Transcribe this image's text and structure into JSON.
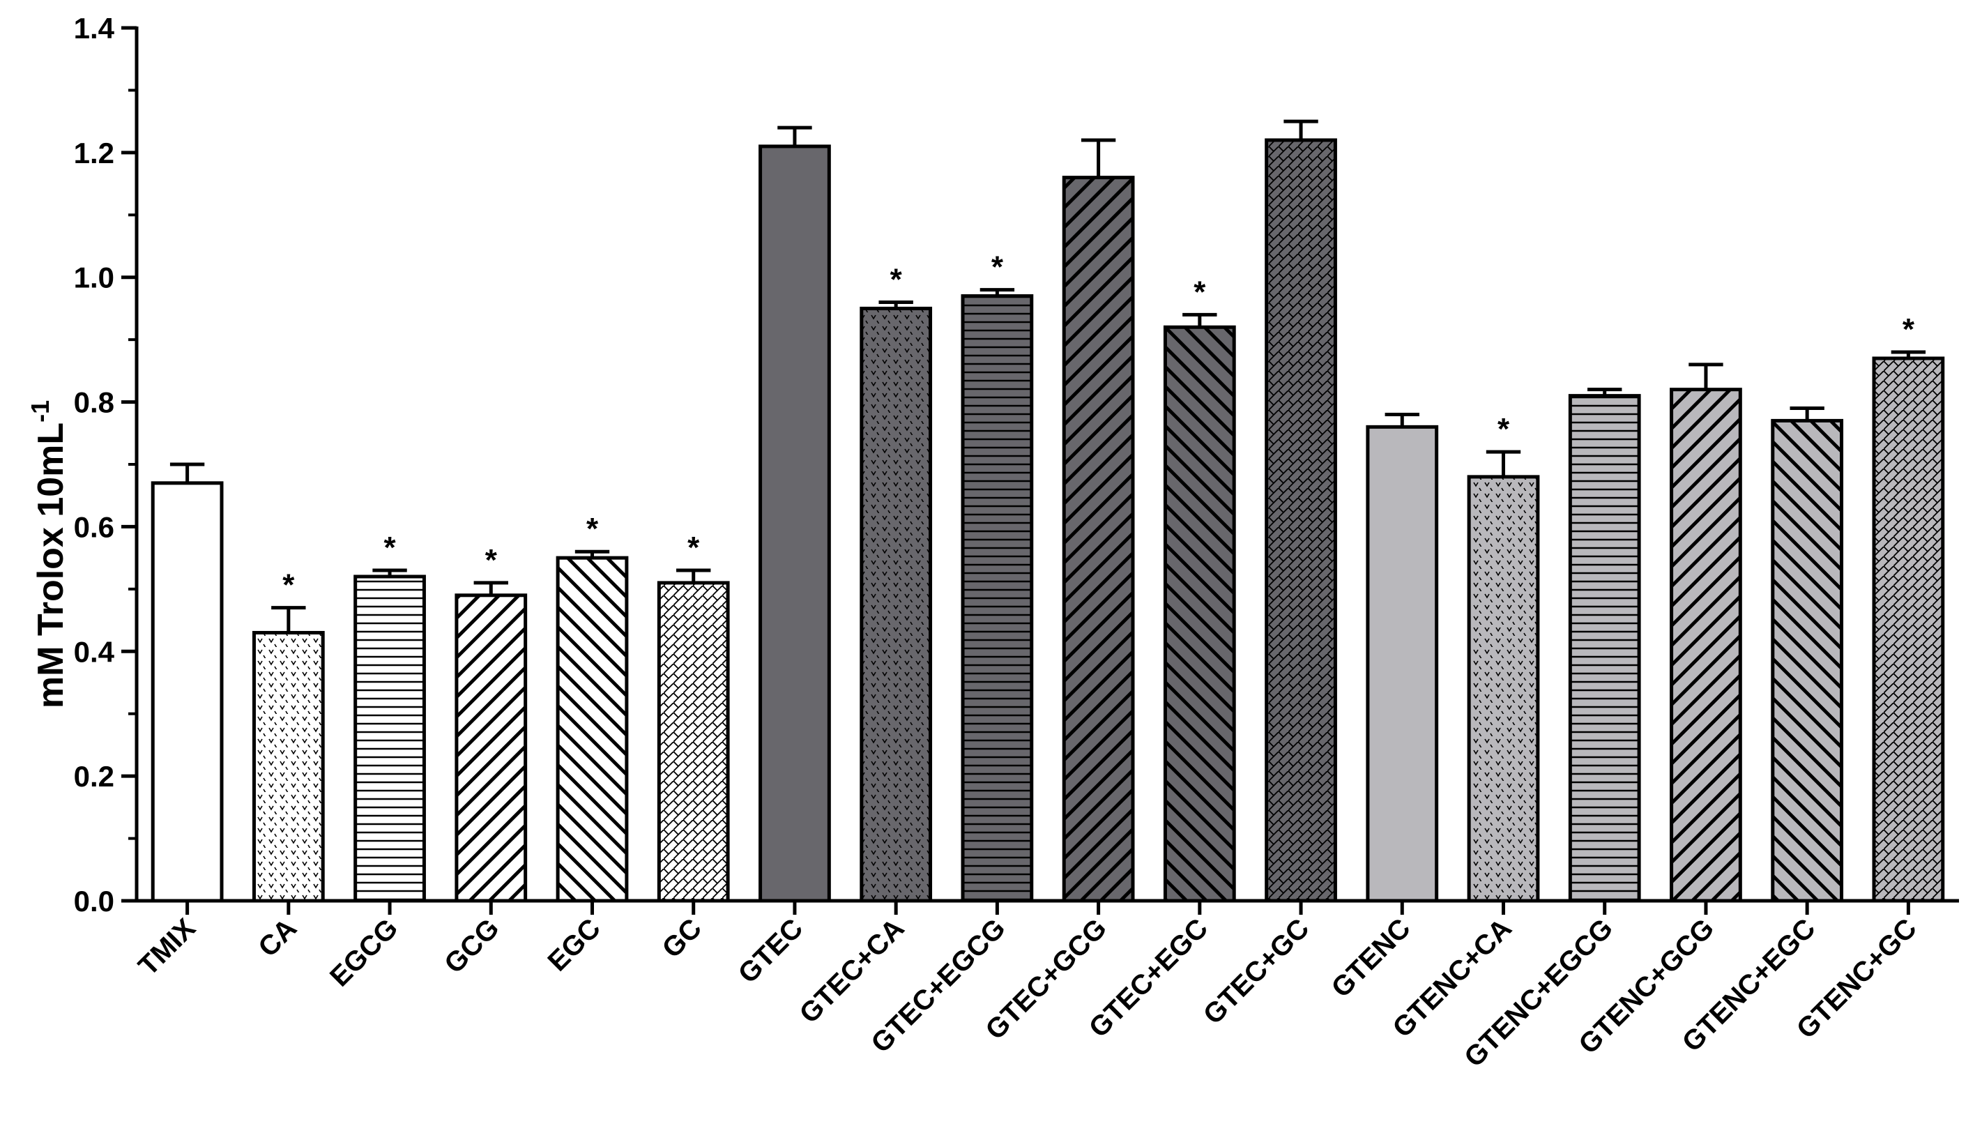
{
  "chart_data": {
    "type": "bar",
    "title": "",
    "xlabel": "",
    "ylabel": "mM Trolox 10mL",
    "ylabel_superscript": "-1",
    "ylim": [
      0,
      1.4
    ],
    "yticks": [
      "0.0",
      "0.2",
      "0.4",
      "0.6",
      "0.8",
      "1.0",
      "1.2",
      "1.4"
    ],
    "grid": false,
    "legend": "none",
    "categories": [
      "TMIX",
      "CA",
      "EGCG",
      "GCG",
      "EGC",
      "GC",
      "GTEC",
      "GTEC+CA",
      "GTEC+EGCG",
      "GTEC+GCG",
      "GTEC+EGC",
      "GTEC+GC",
      "GTENC",
      "GTENC+CA",
      "GTENC+EGCG",
      "GTENC+GCG",
      "GTENC+EGC",
      "GTENC+GC"
    ],
    "values": [
      0.67,
      0.43,
      0.52,
      0.49,
      0.55,
      0.51,
      1.21,
      0.95,
      0.97,
      1.16,
      0.92,
      1.22,
      0.76,
      0.68,
      0.81,
      0.82,
      0.77,
      0.87
    ],
    "errors": [
      0.03,
      0.04,
      0.01,
      0.02,
      0.01,
      0.02,
      0.03,
      0.01,
      0.01,
      0.06,
      0.02,
      0.03,
      0.02,
      0.04,
      0.01,
      0.04,
      0.02,
      0.01
    ],
    "significance": [
      "",
      "*",
      "*",
      "*",
      "*",
      "*",
      "",
      "*",
      "*",
      "",
      "*",
      "",
      "",
      "*",
      "",
      "",
      "",
      "*"
    ],
    "fill_colors": [
      "#ffffff",
      "#ffffff",
      "#ffffff",
      "#ffffff",
      "#ffffff",
      "#ffffff",
      "#68676c",
      "#68676c",
      "#68676c",
      "#68676c",
      "#68676c",
      "#68676c",
      "#b9b8bc",
      "#b9b8bc",
      "#b9b8bc",
      "#b9b8bc",
      "#b9b8bc",
      "#b9b8bc"
    ],
    "patterns": [
      "solid",
      "chevron",
      "horizontal",
      "diag-up",
      "diag-down",
      "crosshatch",
      "solid",
      "chevron",
      "horizontal",
      "diag-up",
      "diag-down",
      "crosshatch",
      "solid",
      "chevron",
      "horizontal",
      "diag-up",
      "diag-down",
      "crosshatch"
    ],
    "significance_marker": "*"
  }
}
